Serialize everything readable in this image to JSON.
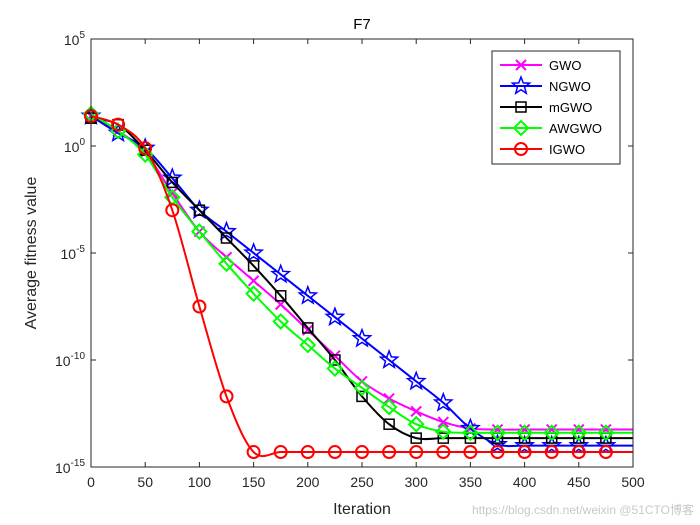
{
  "chart_data": {
    "type": "line",
    "title": "F7",
    "xlabel": "Iteration",
    "ylabel": "Average fitness value",
    "yscale": "log",
    "xlim": [
      0,
      500
    ],
    "ylim_exp": [
      -15,
      5
    ],
    "xticks": [
      0,
      50,
      100,
      150,
      200,
      250,
      300,
      350,
      400,
      450,
      500
    ],
    "yticks_exp": [
      -15,
      -10,
      -5,
      0,
      5
    ],
    "ytick_base": "10",
    "legend_position": "top-right",
    "marker_every": 25,
    "series": [
      {
        "name": "GWO",
        "color": "#ff00ff",
        "marker": "x",
        "log10_values": [
          1.4,
          0.7,
          -0.3,
          -2.2,
          -4.0,
          -5.2,
          -6.3,
          -7.4,
          -8.6,
          -9.8,
          -11.0,
          -11.8,
          -12.4,
          -12.9,
          -13.2,
          -13.25,
          -13.25,
          -13.25,
          -13.25,
          -13.25,
          -13.25
        ]
      },
      {
        "name": "NGWO",
        "color": "#0000ff",
        "marker": "star",
        "log10_values": [
          1.4,
          0.6,
          -0.1,
          -1.5,
          -3.0,
          -4.0,
          -5.0,
          -6.0,
          -7.0,
          -8.0,
          -9.0,
          -10.0,
          -11.0,
          -12.0,
          -13.2,
          -13.95,
          -14.0,
          -14.0,
          -14.0,
          -14.0,
          -14.0
        ]
      },
      {
        "name": "mGWO",
        "color": "#000000",
        "marker": "square",
        "log10_values": [
          1.3,
          1.0,
          -0.2,
          -1.7,
          -3.0,
          -4.3,
          -5.6,
          -7.0,
          -8.5,
          -10.0,
          -11.7,
          -13.0,
          -13.65,
          -13.65,
          -13.65,
          -13.65,
          -13.65,
          -13.65,
          -13.65,
          -13.65,
          -13.65
        ]
      },
      {
        "name": "AWGWO",
        "color": "#00ff00",
        "marker": "diamond",
        "log10_values": [
          1.5,
          0.7,
          -0.4,
          -2.4,
          -4.0,
          -5.5,
          -6.9,
          -8.2,
          -9.3,
          -10.4,
          -11.3,
          -12.2,
          -13.0,
          -13.35,
          -13.4,
          -13.4,
          -13.4,
          -13.4,
          -13.4,
          -13.4,
          -13.4
        ]
      },
      {
        "name": "IGWO",
        "color": "#ff0000",
        "marker": "circle",
        "log10_values": [
          1.4,
          1.0,
          -0.1,
          -3.0,
          -7.5,
          -11.7,
          -14.3,
          -14.3,
          -14.3,
          -14.3,
          -14.3,
          -14.3,
          -14.3,
          -14.3,
          -14.3,
          -14.3,
          -14.3,
          -14.3,
          -14.3,
          -14.3,
          -14.3
        ]
      }
    ]
  },
  "watermark": "https://blog.csdn.net/weixin @51CTO博客"
}
